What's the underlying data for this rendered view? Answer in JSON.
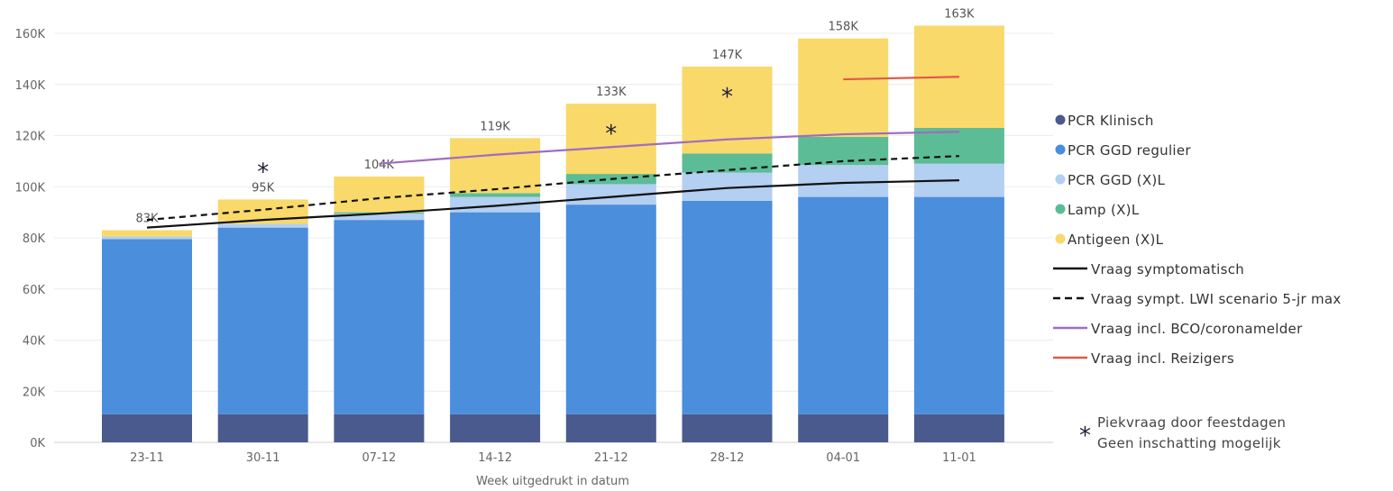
{
  "chart_data": {
    "type": "bar",
    "stacked": true,
    "categories": [
      "23-11",
      "30-11",
      "07-12",
      "14-12",
      "21-12",
      "28-12",
      "04-01",
      "11-01"
    ],
    "xlabel": "Week uitgedrukt in datum",
    "ylabel": "",
    "ylim": [
      0,
      165000
    ],
    "yticks": [
      0,
      20000,
      40000,
      60000,
      80000,
      100000,
      120000,
      140000,
      160000
    ],
    "ytick_labels": [
      "0K",
      "20K",
      "40K",
      "60K",
      "80K",
      "100K",
      "120K",
      "140K",
      "160K"
    ],
    "grid": true,
    "legend_position": "right",
    "series": [
      {
        "name": "PCR Klinisch",
        "color": "#4a5a8c",
        "values": [
          11000,
          11000,
          11000,
          11000,
          11000,
          11000,
          11000,
          11000
        ]
      },
      {
        "name": "PCR GGD regulier",
        "color": "#4a8edc",
        "values": [
          68500,
          73000,
          76000,
          79000,
          82000,
          83500,
          85000,
          85000
        ]
      },
      {
        "name": "PCR GGD (X)L",
        "color": "#b3cff1",
        "values": [
          1000,
          1500,
          2500,
          6000,
          8000,
          11000,
          12500,
          13000
        ]
      },
      {
        "name": "Lamp (X)L",
        "color": "#5cbc96",
        "values": [
          0,
          0,
          500,
          1500,
          4000,
          7500,
          11000,
          14000
        ]
      },
      {
        "name": "Antigeen (X)L",
        "color": "#f8d96a",
        "values": [
          2500,
          9500,
          14000,
          21500,
          27500,
          34000,
          38500,
          40000
        ]
      }
    ],
    "totals": [
      "83K",
      "95K",
      "104K",
      "119K",
      "133K",
      "147K",
      "158K",
      "163K"
    ],
    "lines": [
      {
        "name": "Vraag symptomatisch",
        "color": "#111111",
        "dash": "solid",
        "x_start": 0,
        "values": [
          84000,
          87000,
          89500,
          92500,
          96000,
          99500,
          101500,
          102500
        ]
      },
      {
        "name": "Vraag sympt. LWI scenario 5-jr max",
        "color": "#111111",
        "dash": "dashed",
        "x_start": 0,
        "values": [
          87000,
          91000,
          95500,
          99000,
          103000,
          106500,
          110000,
          112000
        ]
      },
      {
        "name": "Vraag incl. BCO/coronamelder",
        "color": "#a06cc0",
        "dash": "solid",
        "x_start": 2,
        "values": [
          109000,
          112500,
          115500,
          118500,
          120500,
          121500
        ]
      },
      {
        "name": "Vraag incl. Reizigers",
        "color": "#e05a4a",
        "dash": "solid",
        "x_start": 6,
        "values": [
          142000,
          143000
        ]
      }
    ],
    "peak_markers": [
      1,
      4,
      5
    ],
    "peak_marker_symbol": "*",
    "annotation": {
      "symbol": "*",
      "line1": "Piekvraag door feestdagen",
      "line2": "Geen inschatting mogelijk"
    }
  }
}
